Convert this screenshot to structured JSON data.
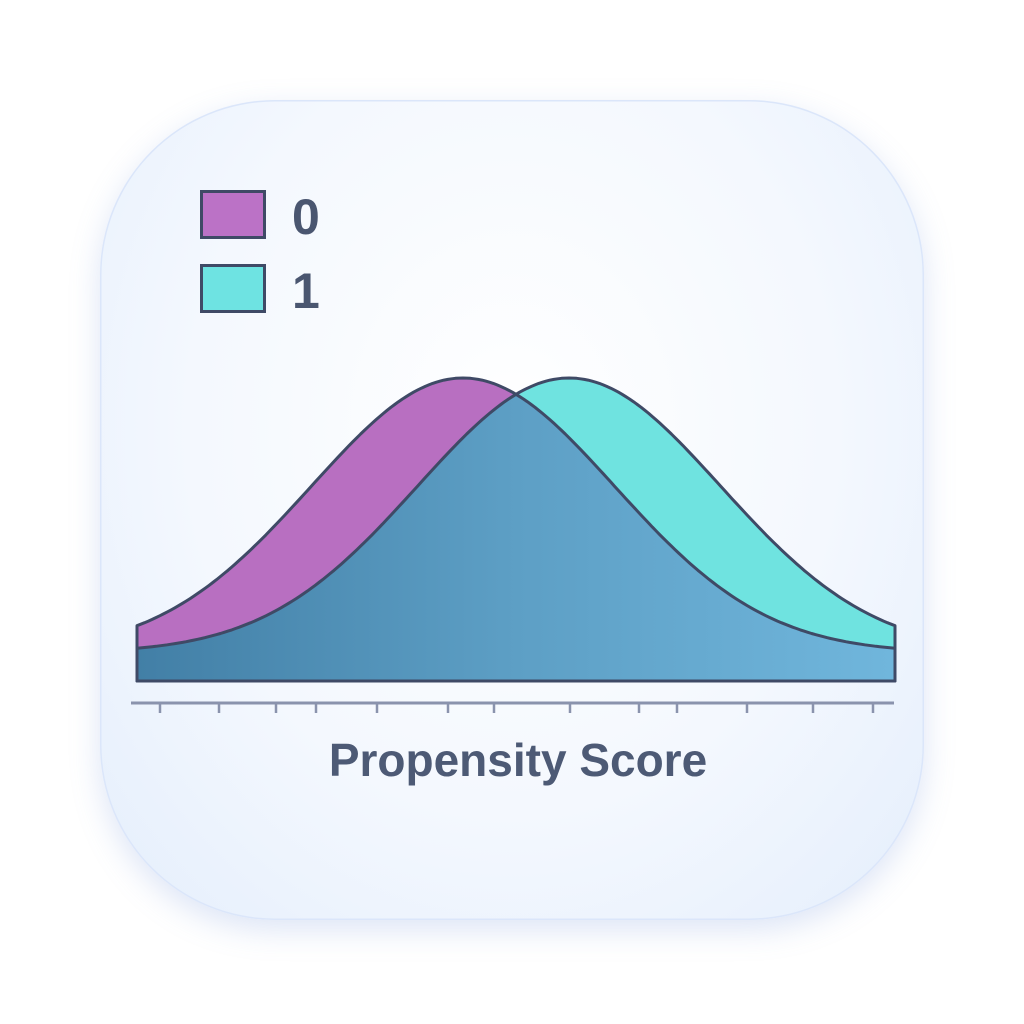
{
  "chart_data": {
    "type": "area",
    "title": "",
    "xlabel": "Propensity Score",
    "ylabel": "",
    "xlim": [
      0,
      1
    ],
    "grid": false,
    "legend_position": "top-left",
    "tick_labels": [],
    "series": [
      {
        "name": "0",
        "distribution": "normal",
        "mean": 0.43,
        "sd": 0.2,
        "color": "#b86fc1"
      },
      {
        "name": "1",
        "distribution": "normal",
        "mean": 0.57,
        "sd": 0.2,
        "color": "#6fe3e0"
      }
    ],
    "overlap_color": "#5a9ec4"
  }
}
